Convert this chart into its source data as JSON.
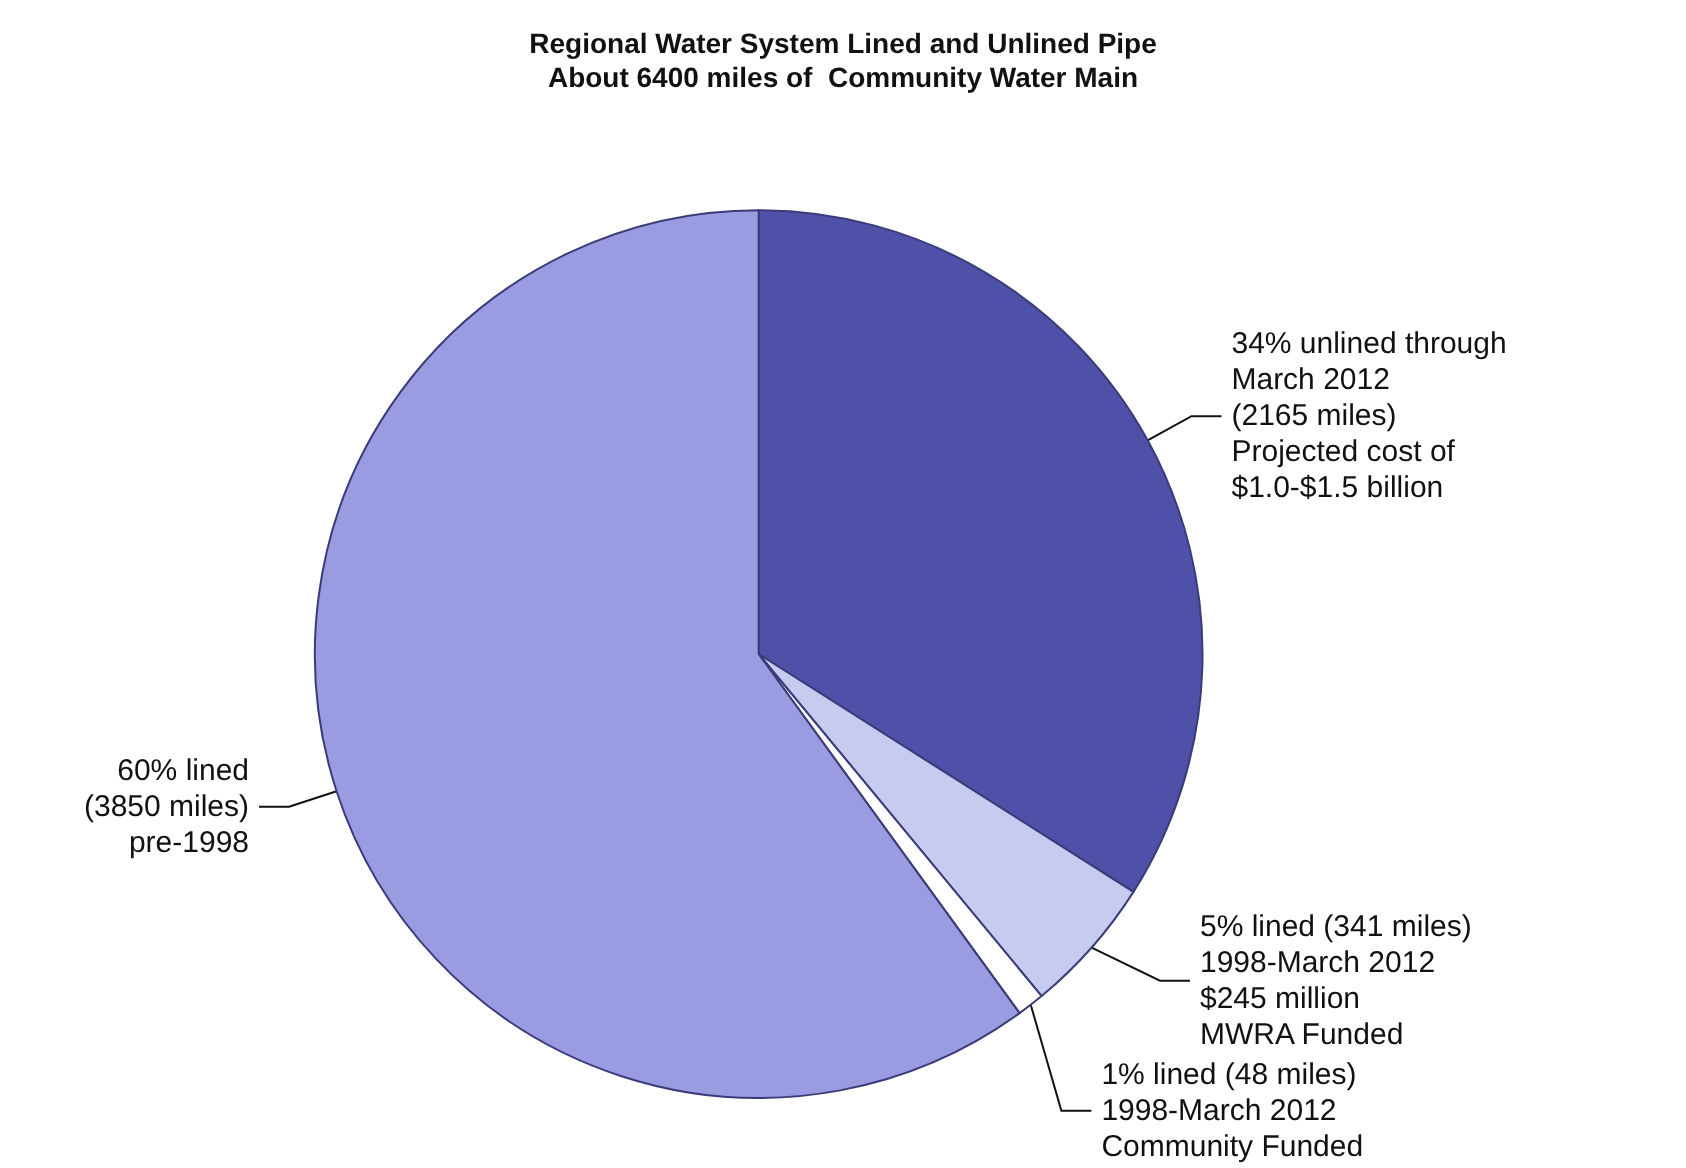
{
  "chart_data": {
    "type": "pie",
    "title": "Regional Water System Lined and Unlined Pipe\nAbout 6400 miles of  Community Water Main",
    "categories": [
      null,
      null,
      null,
      null
    ],
    "values": [
      34,
      5,
      1,
      60
    ],
    "colors": [
      "#4f51a8",
      "#c8cbf0",
      "#ffffff",
      "#9a9be0"
    ],
    "value_labels": [
      "34% unlined through\nMarch 2012\n(2165 miles)\nProjected cost of\n$1.0-$1.5 billion",
      "5% lined (341 miles)\n1998-March 2012\n$245 million\nMWRA Funded",
      "1% lined (48 miles)\n1998-March 2012\nCommunity Funded",
      "60% lined\n(3850 miles)\npre-1998"
    ]
  }
}
